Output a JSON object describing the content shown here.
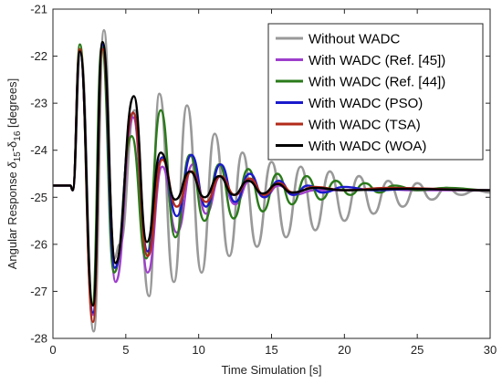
{
  "chart_data": {
    "type": "line",
    "xlabel": "Time Simulation [s]",
    "ylabel_main": "Angular Response ",
    "ylabel_delta": "δ",
    "ylabel_sub1": "15",
    "ylabel_mid": "-δ",
    "ylabel_sub2": "16",
    "ylabel_unit": " [degrees]",
    "xlim": [
      0,
      30
    ],
    "ylim": [
      -28,
      -21
    ],
    "xticks": [
      0,
      5,
      10,
      15,
      20,
      25,
      30
    ],
    "yticks": [
      -21,
      -22,
      -23,
      -24,
      -25,
      -26,
      -27,
      -28
    ],
    "grid": false,
    "legend_position": "top-right",
    "baseline": -24.75,
    "disturbance_time": 1.2,
    "series": [
      {
        "name": "Without WADC",
        "color": "#999999",
        "points": [
          [
            1.9,
            -21.95
          ],
          [
            2.8,
            -27.85
          ],
          [
            3.5,
            -21.45
          ],
          [
            4.2,
            -26.3
          ],
          [
            4.6,
            -26.0
          ],
          [
            5.6,
            -23.15
          ],
          [
            6.6,
            -27.1
          ],
          [
            7.3,
            -22.8
          ],
          [
            8.3,
            -26.8
          ],
          [
            9.2,
            -23.05
          ],
          [
            10.2,
            -26.6
          ],
          [
            11.1,
            -23.65
          ],
          [
            12.1,
            -26.25
          ],
          [
            13.0,
            -24.05
          ],
          [
            14.0,
            -26.05
          ],
          [
            15.0,
            -24.25
          ],
          [
            16.0,
            -25.85
          ],
          [
            17.0,
            -24.35
          ],
          [
            18.0,
            -25.7
          ],
          [
            19.0,
            -24.45
          ],
          [
            20.0,
            -25.5
          ],
          [
            21.0,
            -24.55
          ],
          [
            22.0,
            -25.35
          ],
          [
            23.0,
            -24.65
          ],
          [
            24.0,
            -25.2
          ],
          [
            25.0,
            -24.7
          ],
          [
            26.0,
            -25.05
          ],
          [
            27.0,
            -24.8
          ],
          [
            28.0,
            -24.95
          ],
          [
            29.0,
            -24.85
          ],
          [
            30.0,
            -24.9
          ]
        ]
      },
      {
        "name": "With WADC (Ref. [45])",
        "color": "#9e3fcb",
        "points": [
          [
            1.85,
            -21.85
          ],
          [
            2.75,
            -27.5
          ],
          [
            3.4,
            -21.75
          ],
          [
            4.3,
            -26.8
          ],
          [
            5.5,
            -23.3
          ],
          [
            6.5,
            -26.6
          ],
          [
            7.5,
            -24.35
          ],
          [
            8.5,
            -25.75
          ],
          [
            9.6,
            -24.3
          ],
          [
            10.5,
            -25.35
          ],
          [
            11.5,
            -24.55
          ],
          [
            12.5,
            -25.15
          ],
          [
            13.5,
            -24.65
          ],
          [
            14.5,
            -25.0
          ],
          [
            15.5,
            -24.75
          ],
          [
            16.5,
            -24.95
          ],
          [
            18.0,
            -24.85
          ],
          [
            20.0,
            -24.85
          ],
          [
            22.0,
            -24.82
          ],
          [
            25.0,
            -24.85
          ],
          [
            30.0,
            -24.85
          ]
        ]
      },
      {
        "name": "With WADC (Ref. [44])",
        "color": "#2a7a1a",
        "points": [
          [
            1.85,
            -21.75
          ],
          [
            2.7,
            -27.3
          ],
          [
            3.35,
            -21.8
          ],
          [
            4.2,
            -26.6
          ],
          [
            5.4,
            -23.7
          ],
          [
            6.4,
            -26.3
          ],
          [
            7.4,
            -23.15
          ],
          [
            8.4,
            -25.85
          ],
          [
            9.4,
            -24.1
          ],
          [
            10.4,
            -25.5
          ],
          [
            11.4,
            -24.3
          ],
          [
            12.4,
            -25.45
          ],
          [
            13.4,
            -24.4
          ],
          [
            14.4,
            -25.3
          ],
          [
            15.4,
            -24.5
          ],
          [
            16.4,
            -25.15
          ],
          [
            17.4,
            -24.55
          ],
          [
            18.4,
            -25.05
          ],
          [
            19.4,
            -24.65
          ],
          [
            20.4,
            -24.95
          ],
          [
            21.4,
            -24.7
          ],
          [
            22.4,
            -24.9
          ],
          [
            23.4,
            -24.75
          ],
          [
            25.0,
            -24.85
          ],
          [
            27.0,
            -24.8
          ],
          [
            30.0,
            -24.85
          ]
        ]
      },
      {
        "name": "With WADC (PSO)",
        "color": "#1a1acc",
        "points": [
          [
            1.85,
            -21.9
          ],
          [
            2.75,
            -27.45
          ],
          [
            3.4,
            -21.75
          ],
          [
            4.25,
            -26.5
          ],
          [
            5.5,
            -23.2
          ],
          [
            6.5,
            -26.15
          ],
          [
            7.5,
            -24.15
          ],
          [
            8.5,
            -25.4
          ],
          [
            9.5,
            -24.1
          ],
          [
            10.5,
            -25.2
          ],
          [
            11.5,
            -24.3
          ],
          [
            12.5,
            -25.1
          ],
          [
            13.5,
            -24.5
          ],
          [
            14.5,
            -25.0
          ],
          [
            15.5,
            -24.65
          ],
          [
            16.5,
            -24.95
          ],
          [
            17.5,
            -24.75
          ],
          [
            18.5,
            -24.9
          ],
          [
            20.0,
            -24.78
          ],
          [
            22.0,
            -24.85
          ],
          [
            25.0,
            -24.82
          ],
          [
            30.0,
            -24.85
          ]
        ]
      },
      {
        "name": "With WADC (TSA)",
        "color": "#b22a1a",
        "points": [
          [
            1.85,
            -21.85
          ],
          [
            2.75,
            -27.65
          ],
          [
            3.4,
            -21.85
          ],
          [
            4.3,
            -26.4
          ],
          [
            5.5,
            -23.2
          ],
          [
            6.5,
            -26.25
          ],
          [
            7.5,
            -24.2
          ],
          [
            8.5,
            -25.2
          ],
          [
            9.5,
            -24.45
          ],
          [
            10.5,
            -25.1
          ],
          [
            11.5,
            -24.55
          ],
          [
            12.5,
            -24.95
          ],
          [
            13.5,
            -24.6
          ],
          [
            14.5,
            -24.95
          ],
          [
            15.5,
            -24.7
          ],
          [
            16.5,
            -24.9
          ],
          [
            18.0,
            -24.78
          ],
          [
            20.0,
            -24.85
          ],
          [
            23.0,
            -24.8
          ],
          [
            30.0,
            -24.85
          ]
        ]
      },
      {
        "name": "With WADC (WOA)",
        "color": "#000000",
        "points": [
          [
            1.85,
            -21.9
          ],
          [
            2.75,
            -27.3
          ],
          [
            3.4,
            -21.7
          ],
          [
            4.3,
            -26.4
          ],
          [
            5.55,
            -22.85
          ],
          [
            6.45,
            -25.95
          ],
          [
            7.4,
            -24.05
          ],
          [
            8.4,
            -25.05
          ],
          [
            9.4,
            -24.45
          ],
          [
            10.4,
            -25.0
          ],
          [
            11.4,
            -24.55
          ],
          [
            12.4,
            -24.95
          ],
          [
            13.4,
            -24.65
          ],
          [
            14.4,
            -24.92
          ],
          [
            15.4,
            -24.72
          ],
          [
            16.4,
            -24.9
          ],
          [
            18.0,
            -24.8
          ],
          [
            20.0,
            -24.85
          ],
          [
            24.0,
            -24.82
          ],
          [
            30.0,
            -24.85
          ]
        ]
      }
    ]
  }
}
